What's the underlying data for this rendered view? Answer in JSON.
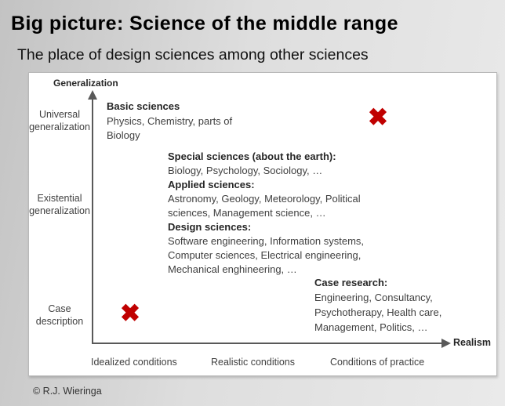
{
  "slide": {
    "title": "Big picture: Science of the middle range",
    "subtitle": "The place of design sciences among other sciences",
    "footer": "© R.J. Wieringa"
  },
  "diagram": {
    "y_axis": {
      "title": "Generalization",
      "tick_labels": [
        {
          "line1": "Universal",
          "line2": "generalization"
        },
        {
          "line1": "Existential",
          "line2": "generalization"
        },
        {
          "line1": "Case",
          "line2": "description"
        }
      ]
    },
    "x_axis": {
      "title": "Realism",
      "tick_labels": [
        "Idealized conditions",
        "Realistic conditions",
        "Conditions of practice"
      ]
    },
    "annotations": {
      "basic_sciences": {
        "heading": "Basic sciences",
        "lines": [
          "Physics, Chemistry, parts of",
          "Biology"
        ]
      },
      "middle_sciences": {
        "sections": [
          {
            "heading": "Special sciences (about the earth):",
            "lines": [
              "Biology, Psychology, Sociology, …"
            ]
          },
          {
            "heading": "Applied sciences:",
            "lines": [
              "Astronomy, Geology, Meteorology, Political",
              "sciences, Management science, …"
            ]
          },
          {
            "heading": "Design sciences:",
            "lines": [
              "Software engineering, Information systems,",
              "Computer sciences, Electrical engineering,",
              "Mechanical enghineering, …"
            ]
          }
        ]
      },
      "case_research": {
        "heading": "Case research:",
        "lines": [
          "Engineering, Consultancy,",
          "Psychotherapy, Health care,",
          "Management, Politics, …"
        ]
      }
    },
    "markers": {
      "glyph": "✖",
      "color": "#c00000"
    }
  }
}
